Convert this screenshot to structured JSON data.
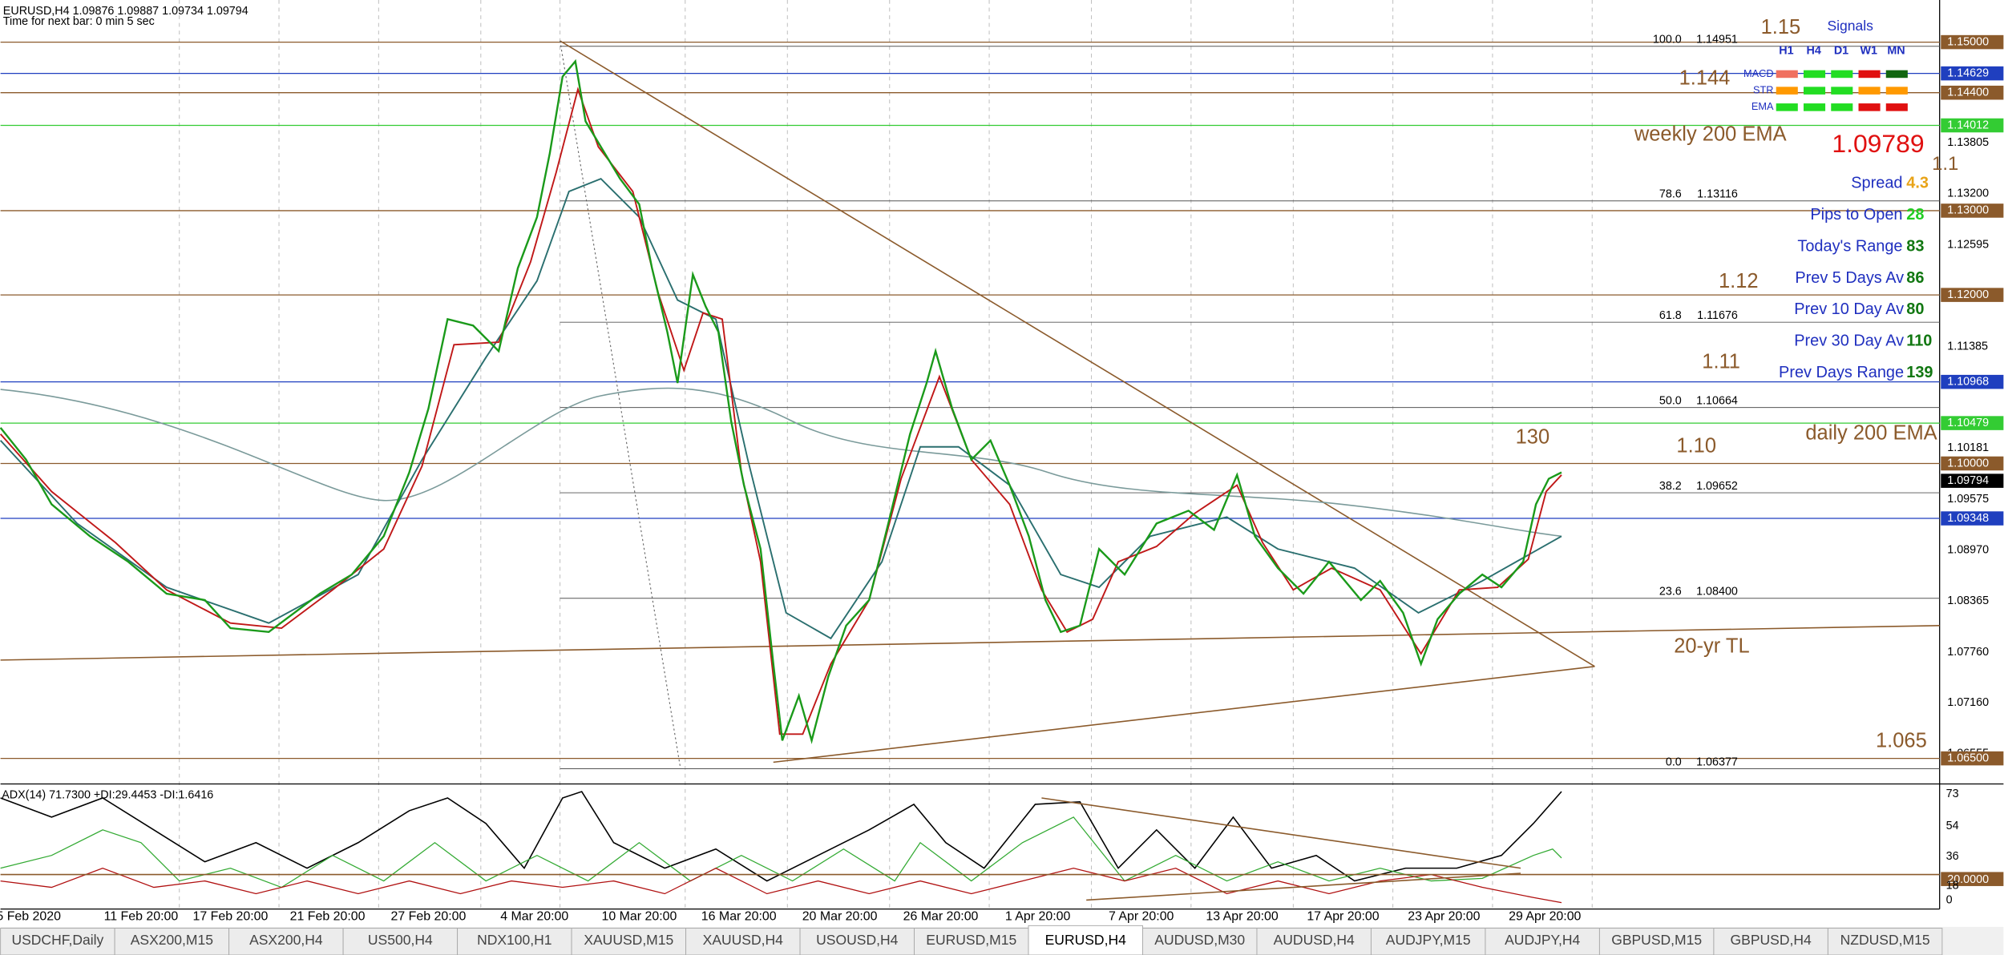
{
  "header": {
    "symbol_line": "EURUSD,H4  1.09876 1.09887 1.09734 1.09794",
    "timer": "Time for next bar: 0 min 5 sec"
  },
  "price_axis": [
    {
      "label": "1.15000",
      "color": "#8b5a2b",
      "line": true
    },
    {
      "label": "1.14629",
      "color": "#1f3fbf",
      "line": true
    },
    {
      "label": "1.14400",
      "color": "#8b5a2b",
      "line": true
    },
    {
      "label": "1.14012",
      "color": "#33cc33",
      "line": true
    },
    {
      "label": "1.13805"
    },
    {
      "label": "1.13200"
    },
    {
      "label": "1.13000",
      "color": "#8b5a2b",
      "line": true
    },
    {
      "label": "1.12595"
    },
    {
      "label": "1.12000",
      "color": "#8b5a2b",
      "line": true
    },
    {
      "label": "1.11385"
    },
    {
      "label": "1.10968",
      "color": "#1f3fbf",
      "line": true
    },
    {
      "label": "1.10479",
      "color": "#33cc33",
      "line": true
    },
    {
      "label": "1.10181"
    },
    {
      "label": "1.10000",
      "color": "#8b5a2b",
      "line": true
    },
    {
      "label": "1.09794",
      "color": "#000000"
    },
    {
      "label": "1.09575"
    },
    {
      "label": "1.09348",
      "color": "#1f3fbf",
      "line": true
    },
    {
      "label": "1.08970"
    },
    {
      "label": "1.08365"
    },
    {
      "label": "1.07760"
    },
    {
      "label": "1.07160"
    },
    {
      "label": "1.06555"
    },
    {
      "label": "1.06500",
      "color": "#8b5a2b",
      "line": true
    }
  ],
  "fib_levels": [
    {
      "ratio": "100.0",
      "price": "1.14951"
    },
    {
      "ratio": "78.6",
      "price": "1.13116"
    },
    {
      "ratio": "61.8",
      "price": "1.11676"
    },
    {
      "ratio": "50.0",
      "price": "1.10664"
    },
    {
      "ratio": "38.2",
      "price": "1.09652"
    },
    {
      "ratio": "23.6",
      "price": "1.08400"
    },
    {
      "ratio": "0.0",
      "price": "1.06377"
    }
  ],
  "annotations": [
    "1.15",
    "1.144",
    "weekly 200 EMA",
    "1.12",
    "1.11",
    "130",
    "1.10",
    "daily 200 EMA",
    "20-yr TL",
    "1.065"
  ],
  "signals": {
    "title": "Signals",
    "columns": [
      "H1",
      "H4",
      "D1",
      "W1",
      "MN"
    ],
    "rows": [
      {
        "name": "MACD",
        "colors": [
          "#f07060",
          "#22dd22",
          "#22dd22",
          "#e01010",
          "#116611"
        ]
      },
      {
        "name": "STR",
        "colors": [
          "#ff9900",
          "#22dd22",
          "#22dd22",
          "#ff9900",
          "#ff9900"
        ]
      },
      {
        "name": "EMA",
        "colors": [
          "#22dd22",
          "#22dd22",
          "#22dd22",
          "#e01010",
          "#e01010"
        ]
      }
    ]
  },
  "stats": {
    "price": "1.09789",
    "partial": "1.1",
    "rows": [
      {
        "label": "Spread",
        "value": "4.3",
        "color": "#e8a317"
      },
      {
        "label": "Pips to Open",
        "value": "28",
        "color": "#22cc22"
      },
      {
        "label": "Today's Range",
        "value": "83",
        "color": "#117711"
      },
      {
        "label": "Prev 5 Days Av",
        "value": "86",
        "color": "#117711"
      },
      {
        "label": "Prev 10 Day Av",
        "value": "80",
        "color": "#117711"
      },
      {
        "label": "Prev 30 Day Av",
        "value": "110",
        "color": "#117711"
      },
      {
        "label": "Prev Days Range",
        "value": "139",
        "color": "#117711"
      }
    ]
  },
  "adx": {
    "label": "ADX(14) 71.7300 +DI:29.4453 -DI:1.6416",
    "ticks": [
      "73",
      "54",
      "36",
      "18",
      "0"
    ],
    "level": "20.0000"
  },
  "time_axis": [
    "5 Feb 2020",
    "11 Feb 20:00",
    "17 Feb 20:00",
    "21 Feb 20:00",
    "27 Feb 20:00",
    "4 Mar 20:00",
    "10 Mar 20:00",
    "16 Mar 20:00",
    "20 Mar 20:00",
    "26 Mar 20:00",
    "1 Apr 20:00",
    "7 Apr 20:00",
    "13 Apr 20:00",
    "17 Apr 20:00",
    "23 Apr 20:00",
    "29 Apr 20:00"
  ],
  "tabs": [
    "USDCHF,Daily",
    "ASX200,M15",
    "ASX200,H4",
    "US500,H4",
    "NDX100,H1",
    "XAUUSD,M15",
    "XAUUSD,H4",
    "USOUSD,H4",
    "EURUSD,M15",
    "EURUSD,H4",
    "AUDUSD,M30",
    "AUDUSD,H4",
    "AUDJPY,M15",
    "AUDJPY,H4",
    "GBPUSD,M15",
    "GBPUSD,H4",
    "NZDUSD,M15"
  ],
  "active_tab": 9
}
